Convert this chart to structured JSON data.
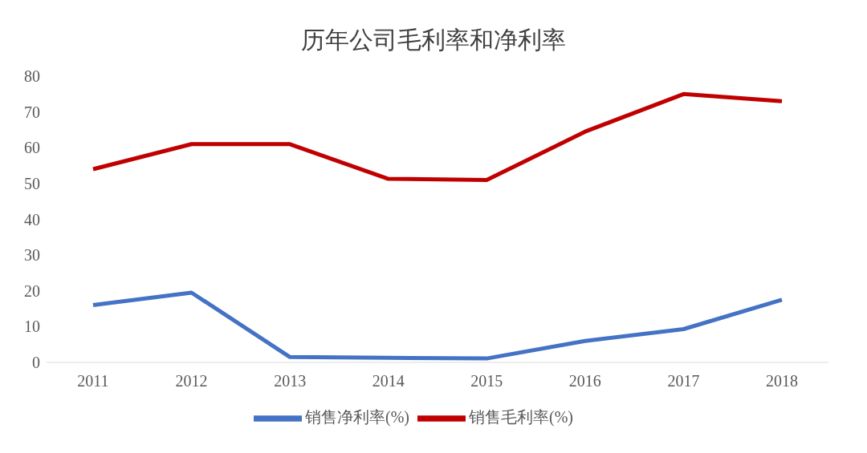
{
  "chart_data": {
    "type": "line",
    "title": "历年公司毛利率和净利率",
    "categories": [
      "2011",
      "2012",
      "2013",
      "2014",
      "2015",
      "2016",
      "2017",
      "2018"
    ],
    "series": [
      {
        "name": "销售净利率(%)",
        "color": "#4472c4",
        "values": [
          16,
          19.5,
          1.5,
          1.3,
          1.1,
          6,
          9.3,
          17.5
        ]
      },
      {
        "name": "销售毛利率(%)",
        "color": "#c00000",
        "values": [
          54,
          61,
          61,
          51.3,
          51,
          64.5,
          75,
          73
        ]
      }
    ],
    "ylim": [
      0,
      80
    ],
    "yticks": [
      0,
      10,
      20,
      30,
      40,
      50,
      60,
      70,
      80
    ],
    "grid": false,
    "legend": "bottom",
    "marker": "none",
    "line_style": "solid"
  }
}
